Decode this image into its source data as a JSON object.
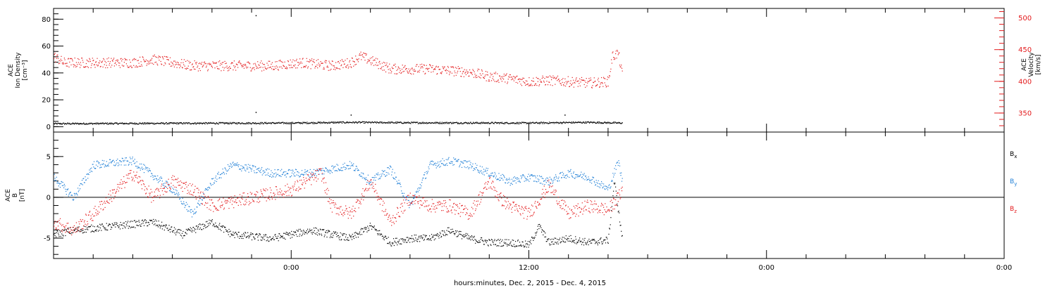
{
  "colors": {
    "black": "#000000",
    "red": "#e31a1c",
    "blue": "#1f7fd6"
  },
  "x_axis": {
    "title": "hours:minutes, Dec. 2, 2015 - Dec. 4, 2015",
    "range_hours": [
      -12,
      36
    ],
    "major_ticks": [
      {
        "hour": 0,
        "label": "0:00"
      },
      {
        "hour": 12,
        "label": "12:00"
      },
      {
        "hour": 24,
        "label": "0:00"
      }
    ],
    "minor_step_hours": 2
  },
  "chart_data": [
    {
      "type": "scatter",
      "panel": "top",
      "y_left": {
        "label_lines": [
          "ACE",
          "Ion Density",
          "[cm⁻³]"
        ],
        "range": [
          -4,
          88
        ],
        "tick_labels": [
          "0",
          "20",
          "40",
          "60",
          "80"
        ]
      },
      "y_right": {
        "label_lines": [
          "ACE",
          "Velocity",
          "[km/s]"
        ],
        "range": [
          320,
          515
        ],
        "tick_labels": [
          "350",
          "400",
          "450",
          "500"
        ],
        "color": "#e31a1c"
      },
      "series": [
        {
          "axis": "left",
          "color": "#000000",
          "x_hours": [
            -12,
            -6,
            0,
            3,
            6,
            9,
            12,
            15,
            16.7
          ],
          "y": [
            2.5,
            2.8,
            3.0,
            3.5,
            3.2,
            3.1,
            3.0,
            3.5,
            3.0
          ],
          "noise": 0.6,
          "spikes": [
            {
              "x_hours": -1.8,
              "y": 83
            },
            {
              "x_hours": -1.8,
              "y": 11
            },
            {
              "x_hours": 3.0,
              "y": 9
            },
            {
              "x_hours": 13.8,
              "y": 9
            }
          ]
        },
        {
          "axis": "right",
          "color": "#e31a1c",
          "x_hours": [
            -12,
            -11.5,
            -10,
            -8,
            -7,
            -5,
            -3,
            -1,
            0.5,
            2,
            3,
            3.5,
            5,
            7,
            9,
            10,
            11,
            12,
            13,
            14,
            15,
            16,
            16.2,
            16.5,
            16.7
          ],
          "y": [
            440,
            430,
            430,
            430,
            435,
            425,
            425,
            425,
            430,
            425,
            430,
            440,
            420,
            420,
            415,
            408,
            405,
            400,
            402,
            400,
            398,
            400,
            440,
            445,
            410
          ],
          "noise": 8
        }
      ]
    },
    {
      "type": "scatter",
      "panel": "bottom",
      "y_left": {
        "label_lines": [
          "ACE",
          "B",
          "[nT]"
        ],
        "range": [
          -7.5,
          8
        ],
        "tick_labels": [
          "-5",
          "0",
          "5"
        ]
      },
      "zero_line": true,
      "legend": [
        {
          "label": "B",
          "sub": "x",
          "color": "#000000"
        },
        {
          "label": "B",
          "sub": "y",
          "color": "#1f7fd6"
        },
        {
          "label": "B",
          "sub": "z",
          "color": "#e31a1c"
        }
      ],
      "series": [
        {
          "name": "Bx",
          "color": "#000000",
          "x_hours": [
            -12,
            -11,
            -9,
            -7,
            -5.5,
            -4,
            -3,
            -1,
            1,
            2,
            3,
            4,
            5,
            6,
            7,
            8,
            9,
            10,
            11,
            12,
            12.5,
            13,
            14,
            15,
            16,
            16.3,
            16.7
          ],
          "y": [
            -4.5,
            -4,
            -3.5,
            -3,
            -4.5,
            -3,
            -4.5,
            -5,
            -4,
            -4.5,
            -5,
            -3.5,
            -5.5,
            -5,
            -5,
            -4,
            -5,
            -5.5,
            -5.5,
            -5.8,
            -3.5,
            -5.5,
            -5,
            -5.5,
            -5.2,
            2,
            -5
          ],
          "noise": 0.45
        },
        {
          "name": "By",
          "color": "#1f7fd6",
          "x_hours": [
            -12,
            -11,
            -10,
            -8,
            -6,
            -5,
            -4,
            -3,
            -1,
            1,
            3,
            4,
            5,
            6,
            7,
            8,
            9,
            10,
            11,
            12,
            13,
            14,
            15,
            16,
            16.5,
            16.7
          ],
          "y": [
            2.5,
            0,
            4,
            4.5,
            1,
            -2,
            2,
            4,
            3,
            3,
            4,
            2,
            3.5,
            -1,
            4,
            4.5,
            4,
            3,
            2,
            2.5,
            2,
            3,
            2.5,
            1,
            4.5,
            2
          ],
          "noise": 0.5
        },
        {
          "name": "Bz",
          "color": "#e31a1c",
          "x_hours": [
            -12,
            -11,
            -10,
            -8,
            -7,
            -6,
            -5,
            -4,
            -2,
            0,
            1.5,
            2,
            3,
            4,
            5,
            6,
            7,
            8,
            9,
            10,
            10.5,
            11,
            12,
            13,
            14,
            15,
            16,
            16.5,
            16.7
          ],
          "y": [
            -3,
            -4,
            -2,
            3,
            0,
            2,
            1,
            -1,
            0,
            1,
            3,
            -1,
            -2,
            2,
            -3,
            0,
            -1,
            -1,
            -2,
            2,
            0,
            -1,
            -2,
            1.5,
            -2,
            -1,
            -1.5,
            0,
            1
          ],
          "noise": 0.8
        }
      ]
    }
  ]
}
